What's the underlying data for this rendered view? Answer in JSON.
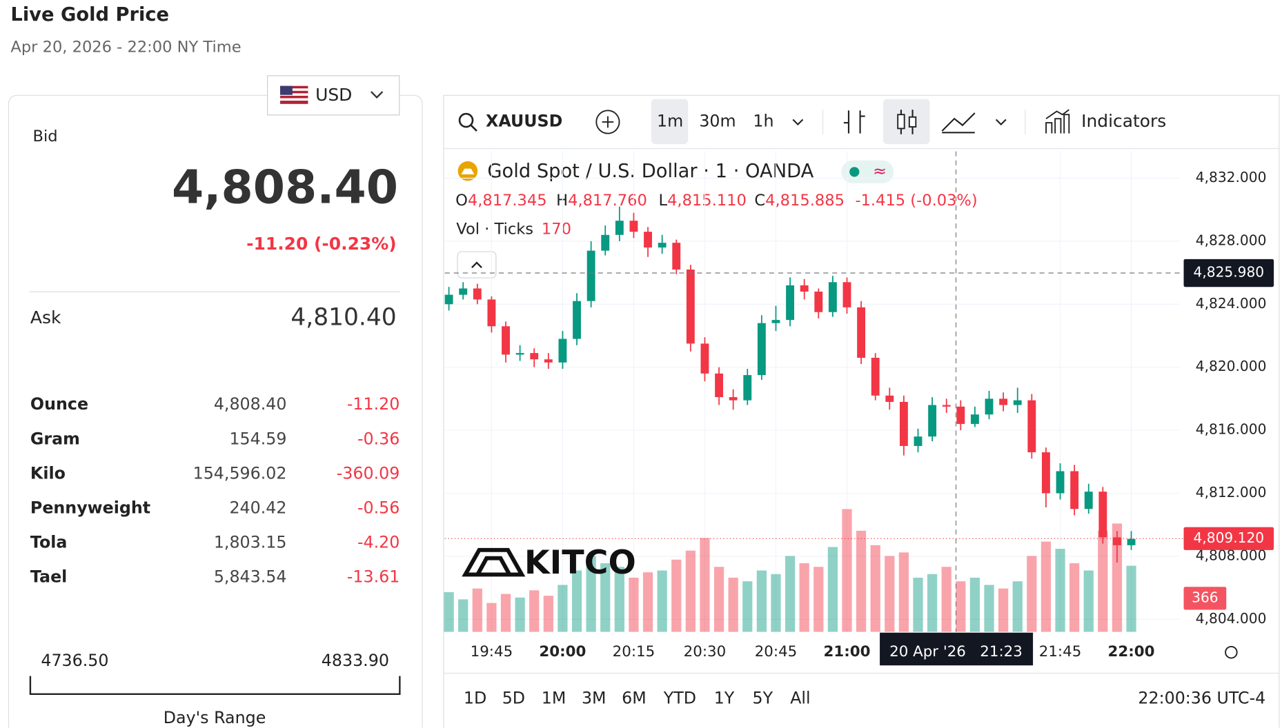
{
  "header": {
    "title": "Live Gold Price",
    "subtitle": "Apr 20, 2026 - 22:00 NY Time"
  },
  "quote": {
    "currency": "USD",
    "bid_label": "Bid",
    "bid": "4,808.40",
    "change": "-11.20 (-0.23%)",
    "ask_label": "Ask",
    "ask": "4,810.40",
    "units": [
      [
        "Ounce",
        "4,808.40",
        "-11.20"
      ],
      [
        "Gram",
        "154.59",
        "-0.36"
      ],
      [
        "Kilo",
        "154,596.02",
        "-360.09"
      ],
      [
        "Pennyweight",
        "240.42",
        "-0.56"
      ],
      [
        "Tola",
        "1,803.15",
        "-4.20"
      ],
      [
        "Tael",
        "5,843.54",
        "-13.61"
      ]
    ],
    "range": {
      "low": "4736.50",
      "high": "4833.90",
      "label": "Day's Range"
    }
  },
  "toolbar": {
    "symbol": "XAUUSD",
    "intervals": [
      "1m",
      "30m",
      "1h"
    ],
    "indicators": "Indicators"
  },
  "legend": {
    "name": "Gold Spot / U.S. Dollar · 1 · OANDA",
    "ohlc": [
      {
        "label": "O",
        "value": "4,817.345"
      },
      {
        "label": "H",
        "value": "4,817.760"
      },
      {
        "label": "L",
        "value": "4,815.110"
      },
      {
        "label": "C",
        "value": "4,815.885"
      }
    ],
    "change": "-1.415 (-0.03%)",
    "vol_label": "Vol · Ticks",
    "vol": "170"
  },
  "watermark": "KITCO",
  "chart_data": {
    "type": "candlestick",
    "x": [
      "19:36",
      "19:39",
      "19:42",
      "19:45",
      "19:48",
      "19:51",
      "19:54",
      "19:57",
      "20:00",
      "20:03",
      "20:06",
      "20:09",
      "20:12",
      "20:15",
      "20:18",
      "20:21",
      "20:24",
      "20:27",
      "20:30",
      "20:33",
      "20:36",
      "20:39",
      "20:42",
      "20:45",
      "20:48",
      "20:51",
      "20:54",
      "20:57",
      "21:00",
      "21:03",
      "21:06",
      "21:09",
      "21:12",
      "21:15",
      "21:18",
      "21:21",
      "21:24",
      "21:27",
      "21:30",
      "21:33",
      "21:36",
      "21:39",
      "21:42",
      "21:45",
      "21:48",
      "21:51",
      "21:54",
      "21:57",
      "22:00"
    ],
    "open": [
      4824.0,
      4824.6,
      4825.0,
      4824.3,
      4822.6,
      4820.8,
      4820.9,
      4820.5,
      4820.3,
      4821.8,
      4824.2,
      4827.4,
      4828.4,
      4829.3,
      4828.6,
      4827.6,
      4827.9,
      4826.2,
      4821.5,
      4819.6,
      4818.1,
      4817.9,
      4819.5,
      4822.8,
      4823.0,
      4825.2,
      4824.8,
      4823.5,
      4825.4,
      4823.8,
      4820.6,
      4818.2,
      4817.8,
      4815.0,
      4815.6,
      4817.6,
      4817.5,
      4816.4,
      4817.0,
      4818.0,
      4817.6,
      4817.9,
      4814.6,
      4812.0,
      4813.4,
      4811.0,
      4812.1,
      4809.2,
      4808.7
    ],
    "high": [
      4825.1,
      4825.4,
      4825.3,
      4824.5,
      4822.9,
      4821.4,
      4821.2,
      4820.9,
      4822.3,
      4824.7,
      4828.0,
      4829.0,
      4830.2,
      4829.8,
      4828.9,
      4828.4,
      4828.1,
      4826.5,
      4821.9,
      4820.0,
      4818.6,
      4819.9,
      4823.3,
      4823.9,
      4825.7,
      4825.6,
      4825.0,
      4825.8,
      4825.7,
      4824.2,
      4820.9,
      4818.7,
      4818.2,
      4816.1,
      4818.1,
      4818.0,
      4817.9,
      4817.5,
      4818.5,
      4818.4,
      4818.7,
      4818.3,
      4814.9,
      4813.9,
      4813.8,
      4812.6,
      4812.4,
      4809.6,
      4809.6
    ],
    "low": [
      4823.6,
      4824.3,
      4824.0,
      4822.2,
      4820.3,
      4820.4,
      4820.0,
      4819.9,
      4819.9,
      4821.4,
      4823.8,
      4827.1,
      4828.0,
      4828.2,
      4827.0,
      4827.2,
      4825.9,
      4821.0,
      4819.1,
      4817.6,
      4817.3,
      4817.6,
      4819.2,
      4822.3,
      4822.6,
      4824.3,
      4823.1,
      4823.2,
      4823.4,
      4820.2,
      4817.9,
      4817.3,
      4814.4,
      4814.6,
      4815.3,
      4817.1,
      4816.0,
      4816.2,
      4816.7,
      4817.2,
      4817.1,
      4814.2,
      4811.1,
      4811.6,
      4810.6,
      4810.7,
      4808.8,
      4807.6,
      4808.4
    ],
    "close": [
      4824.6,
      4825.0,
      4824.3,
      4822.6,
      4820.8,
      4820.9,
      4820.5,
      4820.3,
      4821.8,
      4824.2,
      4827.4,
      4828.4,
      4829.3,
      4828.6,
      4827.6,
      4827.9,
      4826.2,
      4821.5,
      4819.6,
      4818.1,
      4817.9,
      4819.5,
      4822.8,
      4823.0,
      4825.2,
      4824.8,
      4823.5,
      4825.4,
      4823.8,
      4820.6,
      4818.2,
      4817.8,
      4815.0,
      4815.6,
      4817.6,
      4817.5,
      4816.4,
      4817.0,
      4818.0,
      4817.6,
      4817.9,
      4814.6,
      4812.0,
      4813.4,
      4811.0,
      4812.1,
      4809.2,
      4808.7,
      4809.1
    ],
    "volume": [
      220,
      180,
      240,
      160,
      210,
      190,
      230,
      200,
      260,
      340,
      420,
      380,
      360,
      300,
      330,
      340,
      400,
      450,
      520,
      360,
      300,
      280,
      340,
      320,
      420,
      380,
      360,
      470,
      680,
      560,
      480,
      420,
      440,
      300,
      320,
      360,
      280,
      300,
      260,
      240,
      280,
      420,
      500,
      460,
      380,
      340,
      560,
      600,
      366
    ],
    "up_color": "#089981",
    "down_color": "#f23645",
    "ylim": [
      4803.2,
      4833.7
    ],
    "yticks": [
      {
        "value": 4804,
        "label": "4,804.000"
      },
      {
        "value": 4808,
        "label": "4,808.000"
      },
      {
        "value": 4812,
        "label": "4,812.000"
      },
      {
        "value": 4816,
        "label": "4,816.000"
      },
      {
        "value": 4820,
        "label": "4,820.000"
      },
      {
        "value": 4824,
        "label": "4,824.000"
      },
      {
        "value": 4828,
        "label": "4,828.000"
      },
      {
        "value": 4832,
        "label": "4,832.000"
      }
    ],
    "xticks": [
      "19:45",
      "20:00",
      "20:15",
      "20:30",
      "20:45",
      "21:00",
      "21:45",
      "22:00"
    ],
    "grid": true,
    "crosshair": {
      "price": 4825.98,
      "label": "4,825.980",
      "time_label": "20 Apr '26   21:23"
    },
    "last_price": {
      "value": 4809.12,
      "label": "4,809.120"
    }
  },
  "ranges": [
    "1D",
    "5D",
    "1M",
    "3M",
    "6M",
    "YTD",
    "1Y",
    "5Y",
    "All"
  ],
  "clock": "22:00:36 UTC-4"
}
